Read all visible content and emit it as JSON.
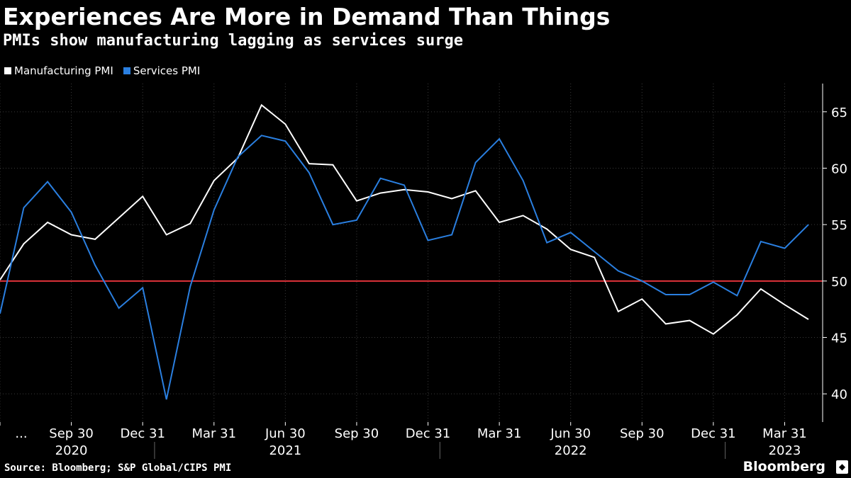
{
  "header": {
    "title": "Experiences Are More in Demand Than Things",
    "subtitle": "PMIs show manufacturing lagging as services surge"
  },
  "legend": {
    "manufacturing_label": "Manufacturing PMI",
    "services_label": "Services PMI"
  },
  "footer": {
    "source": "Source: Bloomberg; S&P Global/CIPS PMI",
    "brand": "Bloomberg"
  },
  "colors": {
    "background": "#000000",
    "manufacturing": "#ffffff",
    "services": "#2a7fe0",
    "threshold": "#e0323a",
    "gridline": "#3a3a3a",
    "axis_text": "#ffffff"
  },
  "chart_data": {
    "type": "line",
    "title": "Experiences Are More in Demand Than Things",
    "subtitle": "PMIs show manufacturing lagging as services surge",
    "xlabel": "",
    "ylabel": "",
    "ylim": [
      37.5,
      67.5
    ],
    "yticks": [
      40,
      45,
      50,
      55,
      60,
      65
    ],
    "x_months": [
      "2020-06",
      "2020-07",
      "2020-08",
      "2020-09",
      "2020-10",
      "2020-11",
      "2020-12",
      "2021-01",
      "2021-02",
      "2021-03",
      "2021-04",
      "2021-05",
      "2021-06",
      "2021-07",
      "2021-08",
      "2021-09",
      "2021-10",
      "2021-11",
      "2021-12",
      "2022-01",
      "2022-02",
      "2022-03",
      "2022-04",
      "2022-05",
      "2022-06",
      "2022-07",
      "2022-08",
      "2022-09",
      "2022-10",
      "2022-11",
      "2022-12",
      "2023-01",
      "2023-02",
      "2023-03",
      "2023-04"
    ],
    "x_tick_labels": [
      {
        "index": 0,
        "label": "..."
      },
      {
        "index": 3,
        "label": "Sep 30"
      },
      {
        "index": 6,
        "label": "Dec 31"
      },
      {
        "index": 9,
        "label": "Mar 31"
      },
      {
        "index": 12,
        "label": "Jun 30"
      },
      {
        "index": 15,
        "label": "Sep 30"
      },
      {
        "index": 18,
        "label": "Dec 31"
      },
      {
        "index": 21,
        "label": "Mar 31"
      },
      {
        "index": 24,
        "label": "Jun 30"
      },
      {
        "index": 27,
        "label": "Sep 30"
      },
      {
        "index": 30,
        "label": "Dec 31"
      },
      {
        "index": 33,
        "label": "Mar 31"
      }
    ],
    "year_labels": [
      {
        "label": "2020",
        "center_index": 3
      },
      {
        "label": "2021",
        "center_index": 12
      },
      {
        "label": "2022",
        "center_index": 24
      },
      {
        "label": "2023",
        "center_index": 33
      }
    ],
    "year_dividers": [
      6,
      18,
      30
    ],
    "series": [
      {
        "name": "Manufacturing PMI",
        "values": [
          50.1,
          53.3,
          55.2,
          54.1,
          53.7,
          55.6,
          57.5,
          54.1,
          55.1,
          58.9,
          60.9,
          65.6,
          63.9,
          60.4,
          60.3,
          57.1,
          57.8,
          58.1,
          57.9,
          57.3,
          58.0,
          55.2,
          55.8,
          54.6,
          52.8,
          52.1,
          47.3,
          48.4,
          46.2,
          46.5,
          45.3,
          47.0,
          49.3,
          47.9,
          46.6
        ]
      },
      {
        "name": "Services PMI",
        "values": [
          47.1,
          56.5,
          58.8,
          56.1,
          51.4,
          47.6,
          49.4,
          39.5,
          49.5,
          56.3,
          61.0,
          62.9,
          62.4,
          59.6,
          55.0,
          55.4,
          59.1,
          58.5,
          53.6,
          54.1,
          60.5,
          62.6,
          58.9,
          53.4,
          54.3,
          52.6,
          50.9,
          50.0,
          48.8,
          48.8,
          49.9,
          48.7,
          53.5,
          52.9,
          55.0
        ]
      }
    ],
    "reference_line": {
      "value": 50
    },
    "legend_position": "top-left",
    "grid": true
  }
}
